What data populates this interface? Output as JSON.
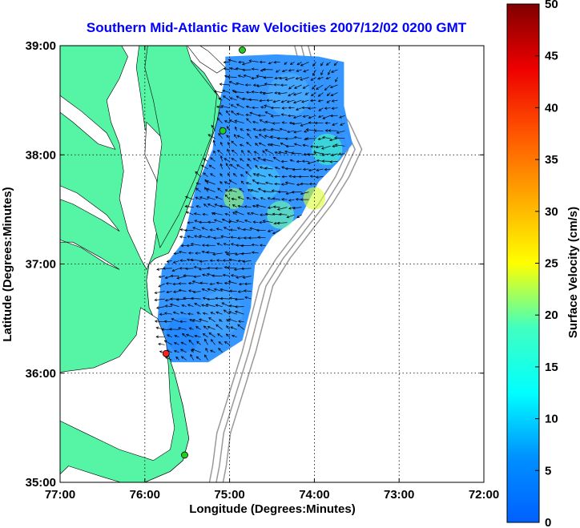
{
  "title": "Southern Mid-Atlantic Raw Velocities 2007/12/02 0200 GMT",
  "map": {
    "x_axis": {
      "label": "Longitude (Degrees:Minutes)",
      "ticks": [
        "77:00",
        "76:00",
        "75:00",
        "74:00",
        "73:00",
        "72:00"
      ],
      "range": [
        -77,
        -72
      ]
    },
    "y_axis": {
      "label": "Latitude (Degrees:Minutes)",
      "ticks": [
        "39:00",
        "38:00",
        "37:00",
        "36:00",
        "35:00"
      ],
      "range": [
        35,
        39
      ]
    },
    "grid": "dotted",
    "land_color": "#55f5a5",
    "water_color": "#ffffff",
    "bathymetry_color": "#999999",
    "arrow_color": "#000000",
    "stations": [
      {
        "lon": -74.85,
        "lat": 38.96,
        "color": "#22cc22"
      },
      {
        "lon": -75.08,
        "lat": 38.22,
        "color": "#22cc22"
      },
      {
        "lon": -75.75,
        "lat": 36.18,
        "color": "#ff2020"
      },
      {
        "lon": -75.53,
        "lat": 35.25,
        "color": "#22cc22"
      }
    ]
  },
  "colorbar": {
    "label": "Surface Velocity (cm/s)",
    "ticks": [
      "0",
      "5",
      "10",
      "15",
      "20",
      "25",
      "30",
      "35",
      "40",
      "45",
      "50"
    ],
    "range": [
      0,
      50
    ],
    "colormap": "jet"
  }
}
